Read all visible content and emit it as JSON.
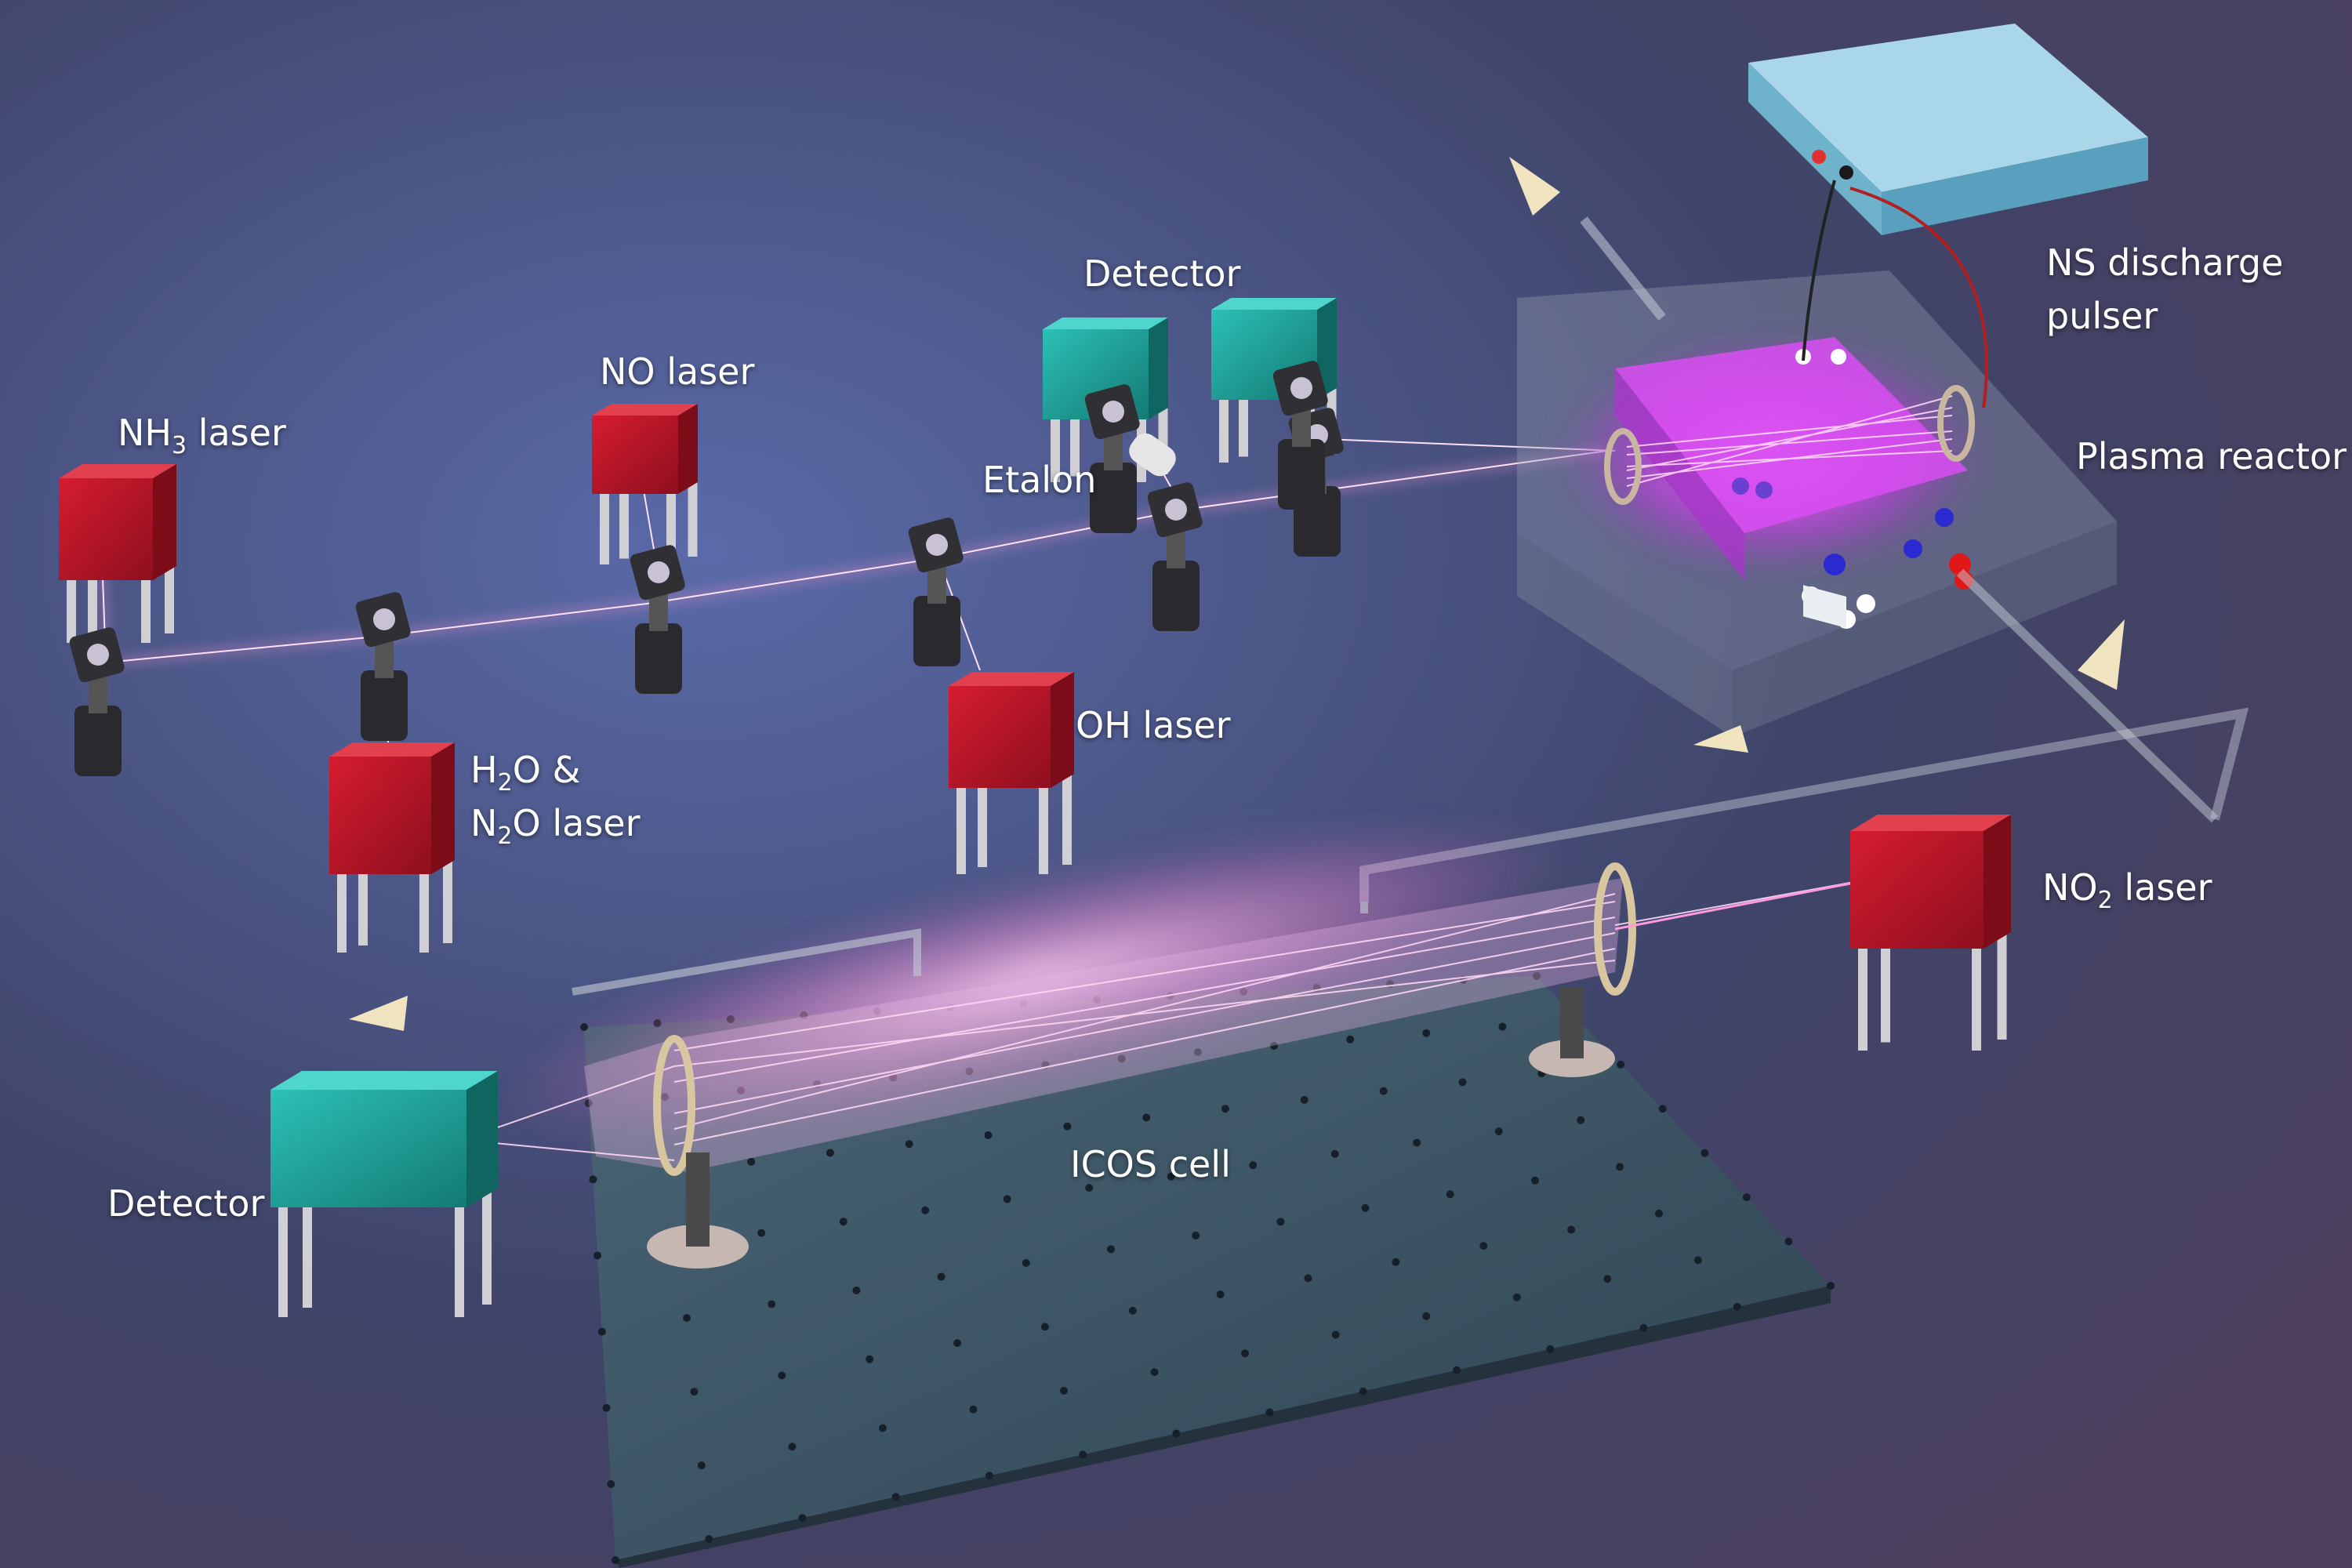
{
  "labels": {
    "nh3_laser": {
      "pre": "NH",
      "sub": "3",
      "post": " laser"
    },
    "no_laser": "NO laser",
    "detector_top": "Detector",
    "etalon": "Etalon",
    "ns_pulser_line1": "NS discharge",
    "ns_pulser_line2": "pulser",
    "plasma_reactor": "Plasma reactor",
    "oh_laser": "OH laser",
    "h2o_n2o_laser": {
      "line1": {
        "pre": "H",
        "sub": "2",
        "post": "O &"
      },
      "line2": {
        "pre": "N",
        "sub": "2",
        "post": "O laser"
      }
    },
    "no2_laser": {
      "pre": "NO",
      "sub": "2",
      "post": " laser"
    },
    "icos_cell": "ICOS cell",
    "detector_bottom": "Detector"
  },
  "colors": {
    "background_top": "#3a3f5c",
    "background_glow": "#5a6aa8",
    "background_bottom": "#5a4a68",
    "laser_box": "#c0172a",
    "detector_box": "#1fa8a0",
    "laser_beam": "#ff8ad8",
    "plasma": "#d63cf0",
    "pulser_box": "#7fc4de",
    "table": "#3d5566"
  }
}
